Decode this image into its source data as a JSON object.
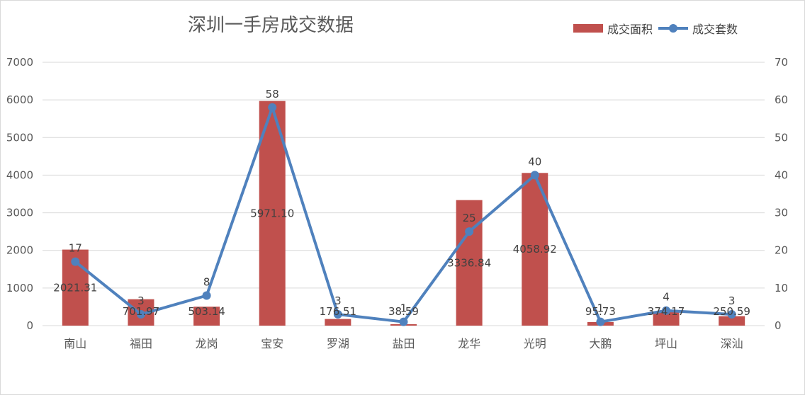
{
  "chart_data": {
    "type": "bar",
    "title": "深圳一手房成交数据",
    "categories": [
      "南山",
      "福田",
      "龙岗",
      "宝安",
      "罗湖",
      "盐田",
      "龙华",
      "光明",
      "大鹏",
      "坪山",
      "深汕"
    ],
    "series": [
      {
        "name": "成交面积",
        "type": "bar",
        "axis": "left",
        "color": "#c0504d",
        "values": [
          2021.31,
          701.97,
          503.14,
          5971.1,
          176.51,
          38.59,
          3336.84,
          4058.92,
          95.73,
          374.17,
          250.59
        ],
        "labels": [
          "2021.31",
          "701.97",
          "503.14",
          "5971.10",
          "176.51",
          "38.59",
          "3336.84",
          "4058.92",
          "95.73",
          "374.17",
          "250.59"
        ]
      },
      {
        "name": "成交套数",
        "type": "line",
        "axis": "right",
        "color": "#4f81bd",
        "values": [
          17,
          3,
          8,
          58,
          3,
          1,
          25,
          40,
          1,
          4,
          3
        ],
        "labels": [
          "17",
          "3",
          "8",
          "58",
          "3",
          "1",
          "25",
          "40",
          "1",
          "4",
          "3"
        ]
      }
    ],
    "y_left": {
      "min": 0,
      "max": 7000,
      "step": 1000,
      "ticks": [
        "0",
        "1000",
        "2000",
        "3000",
        "4000",
        "5000",
        "6000",
        "7000"
      ]
    },
    "y_right": {
      "min": 0,
      "max": 70,
      "step": 10,
      "ticks": [
        "0",
        "10",
        "20",
        "30",
        "40",
        "50",
        "60",
        "70"
      ]
    },
    "grid": true,
    "legend_position": "top-right"
  }
}
